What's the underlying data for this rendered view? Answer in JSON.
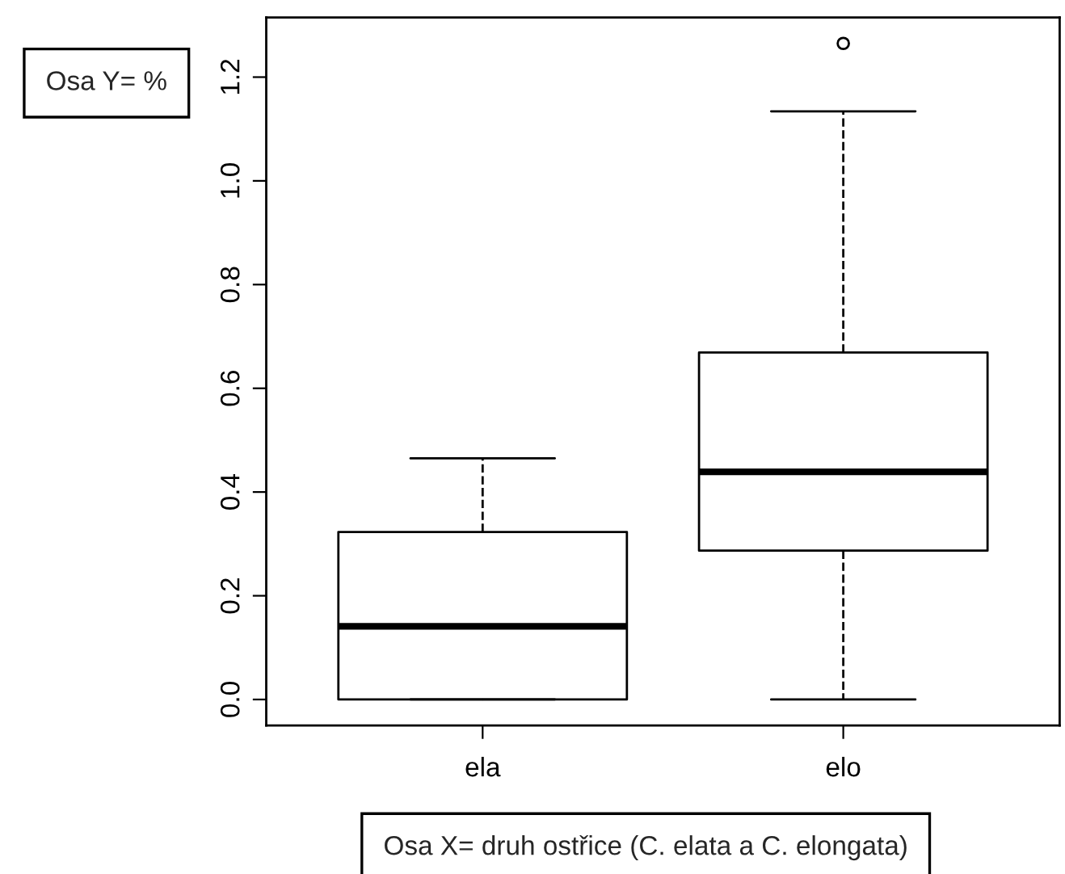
{
  "chart_data": {
    "type": "box",
    "categories": [
      "ela",
      "elo"
    ],
    "boxes": [
      {
        "low": 0.0,
        "q1": 0.0,
        "median": 0.141,
        "q3": 0.323,
        "high": 0.465
      },
      {
        "low": 0.0,
        "q1": 0.287,
        "median": 0.439,
        "q3": 0.669,
        "high": 1.134,
        "outliers": [
          1.265
        ]
      }
    ],
    "ylim": [
      -0.05,
      1.315
    ],
    "yticks": [
      {
        "value": 0,
        "label": "0.0"
      },
      0.2,
      0.4,
      0.6,
      0.8,
      {
        "value": 1,
        "label": "1.0"
      },
      1.2
    ],
    "grid": false,
    "annotations": [
      "Osa Y= %",
      "Osa X= druh ostřice (C. elata a C. elongata)"
    ]
  }
}
